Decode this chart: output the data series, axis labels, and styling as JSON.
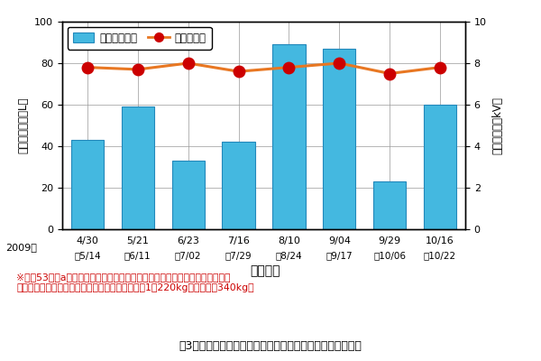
{
  "bar_values": [
    43,
    59,
    33,
    42,
    89,
    87,
    23,
    60
  ],
  "voltage_values": [
    7.8,
    7.7,
    8.0,
    7.6,
    7.8,
    8.0,
    7.5,
    7.8
  ],
  "bar_color": "#44B8E0",
  "line_color": "#E87722",
  "marker_color": "#CC0000",
  "bar_edge_color": "#2288BB",
  "ylim_left": [
    0,
    100
  ],
  "ylim_right": [
    0,
    10
  ],
  "yticks_left": [
    0,
    20,
    40,
    60,
    80,
    100
  ],
  "yticks_right": [
    0,
    2,
    4,
    6,
    8,
    10
  ],
  "ylabel_left": "日平均揚水量（L）",
  "ylabel_right": "電牛線電圧（kV）",
  "xlabel": "放牛期間",
  "legend_bar": "日平均揚水量",
  "legend_line": "電牛線電圧",
  "note_line1": "※面穉53．９aの放牛草地に，４頭の黒毛和種繁殖牛を他牛区との輪換により",
  "note_line2": "放牛。入・退牛時の放牛牛の総体重は，それぞれ1，220kgおよび１，340kg。",
  "caption": "図3　システム導入における家畜飲水量と電牛線電圧の状況",
  "note_color": "#CC0000",
  "caption_color": "#000000",
  "year_label": "2009年",
  "x_top_labels": [
    "4/30",
    "5/21",
    "6/23",
    "7/16",
    "8/10",
    "9/04",
    "9/29",
    "10/16"
  ],
  "x_bottom_labels": [
    "～5/14",
    "～6/11",
    "～7/02",
    "～7/29",
    "～8/24",
    "～9/17",
    "～10/06",
    "～10/22"
  ],
  "bg_color": "#FFFFFF",
  "grid_color": "#888888"
}
